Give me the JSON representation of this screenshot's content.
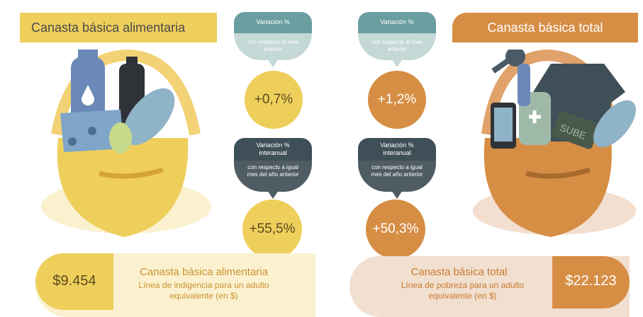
{
  "header": {
    "left_title": "Canasta básica alimentaria",
    "right_title": "Canasta básica total"
  },
  "monthly": {
    "heading": "Variación %",
    "subtitle": "con respecto al mes anterior",
    "left_value": "+0,7%",
    "right_value": "+1,2%"
  },
  "yearly": {
    "heading": "Variación % interanual",
    "subtitle": "con respecto a igual mes del año anterior",
    "left_value": "+55,5%",
    "right_value": "+50,3%"
  },
  "bottom": {
    "left_amount": "$9.454",
    "left_title": "Canasta básica alimentaria",
    "left_desc": "Línea de indigencia para un adulto equivalente (en $)",
    "right_amount": "$22.123",
    "right_title": "Canasta básica total",
    "right_desc": "Línea de pobreza para un adulto equivalente (en $)"
  },
  "illustrations": {
    "left": "food-basket-icon",
    "right": "total-basket-icon",
    "right_card_text": "SUBE"
  },
  "colors": {
    "yellow": "#efcf5c",
    "orange": "#d68e44",
    "teal": "#6a9ea0",
    "dark_slate": "#3f4f57"
  }
}
